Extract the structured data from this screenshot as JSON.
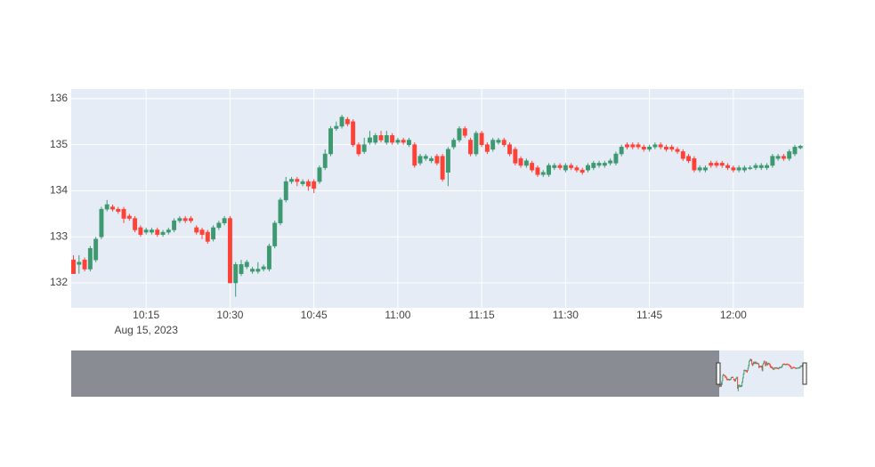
{
  "chart_data": {
    "type": "candlestick",
    "x": [
      "2023-08-15 10:02",
      "2023-08-15 10:03",
      "2023-08-15 10:04",
      "2023-08-15 10:05",
      "2023-08-15 10:06",
      "2023-08-15 10:07",
      "2023-08-15 10:08",
      "2023-08-15 10:09",
      "2023-08-15 10:10",
      "2023-08-15 10:11",
      "2023-08-15 10:12",
      "2023-08-15 10:13",
      "2023-08-15 10:14",
      "2023-08-15 10:15",
      "2023-08-15 10:16",
      "2023-08-15 10:17",
      "2023-08-15 10:18",
      "2023-08-15 10:19",
      "2023-08-15 10:20",
      "2023-08-15 10:21",
      "2023-08-15 10:22",
      "2023-08-15 10:23",
      "2023-08-15 10:24",
      "2023-08-15 10:25",
      "2023-08-15 10:26",
      "2023-08-15 10:27",
      "2023-08-15 10:28",
      "2023-08-15 10:29",
      "2023-08-15 10:30",
      "2023-08-15 10:31",
      "2023-08-15 10:32",
      "2023-08-15 10:33",
      "2023-08-15 10:34",
      "2023-08-15 10:35",
      "2023-08-15 10:36",
      "2023-08-15 10:37",
      "2023-08-15 10:38",
      "2023-08-15 10:39",
      "2023-08-15 10:40",
      "2023-08-15 10:41",
      "2023-08-15 10:42",
      "2023-08-15 10:43",
      "2023-08-15 10:44",
      "2023-08-15 10:45",
      "2023-08-15 10:46",
      "2023-08-15 10:47",
      "2023-08-15 10:48",
      "2023-08-15 10:49",
      "2023-08-15 10:50",
      "2023-08-15 10:51",
      "2023-08-15 10:52",
      "2023-08-15 10:53",
      "2023-08-15 10:54",
      "2023-08-15 10:55",
      "2023-08-15 10:56",
      "2023-08-15 10:57",
      "2023-08-15 10:58",
      "2023-08-15 10:59",
      "2023-08-15 11:00",
      "2023-08-15 11:01",
      "2023-08-15 11:02",
      "2023-08-15 11:03",
      "2023-08-15 11:04",
      "2023-08-15 11:05",
      "2023-08-15 11:06",
      "2023-08-15 11:07",
      "2023-08-15 11:08",
      "2023-08-15 11:09",
      "2023-08-15 11:10",
      "2023-08-15 11:11",
      "2023-08-15 11:12",
      "2023-08-15 11:13",
      "2023-08-15 11:14",
      "2023-08-15 11:15",
      "2023-08-15 11:16",
      "2023-08-15 11:17",
      "2023-08-15 11:18",
      "2023-08-15 11:19",
      "2023-08-15 11:20",
      "2023-08-15 11:21",
      "2023-08-15 11:22",
      "2023-08-15 11:23",
      "2023-08-15 11:24",
      "2023-08-15 11:25",
      "2023-08-15 11:26",
      "2023-08-15 11:27",
      "2023-08-15 11:28",
      "2023-08-15 11:29",
      "2023-08-15 11:30",
      "2023-08-15 11:31",
      "2023-08-15 11:32",
      "2023-08-15 11:33",
      "2023-08-15 11:34",
      "2023-08-15 11:35",
      "2023-08-15 11:36",
      "2023-08-15 11:37",
      "2023-08-15 11:38",
      "2023-08-15 11:39",
      "2023-08-15 11:40",
      "2023-08-15 11:41",
      "2023-08-15 11:42",
      "2023-08-15 11:43",
      "2023-08-15 11:44",
      "2023-08-15 11:45",
      "2023-08-15 11:46",
      "2023-08-15 11:47",
      "2023-08-15 11:48",
      "2023-08-15 11:49",
      "2023-08-15 11:50",
      "2023-08-15 11:51",
      "2023-08-15 11:52",
      "2023-08-15 11:53",
      "2023-08-15 11:54",
      "2023-08-15 11:55",
      "2023-08-15 11:56",
      "2023-08-15 11:57",
      "2023-08-15 11:58",
      "2023-08-15 11:59",
      "2023-08-15 12:00",
      "2023-08-15 12:01",
      "2023-08-15 12:02",
      "2023-08-15 12:03",
      "2023-08-15 12:04",
      "2023-08-15 12:05",
      "2023-08-15 12:06",
      "2023-08-15 12:07",
      "2023-08-15 12:08",
      "2023-08-15 12:09",
      "2023-08-15 12:10",
      "2023-08-15 12:11",
      "2023-08-15 12:12"
    ],
    "open": [
      132.5,
      132.4,
      132.5,
      132.3,
      132.5,
      133.0,
      133.6,
      133.65,
      133.6,
      133.6,
      133.45,
      133.4,
      133.2,
      133.1,
      133.1,
      133.15,
      133.05,
      133.1,
      133.15,
      133.35,
      133.4,
      133.4,
      133.2,
      133.15,
      133.1,
      132.95,
      133.2,
      133.3,
      133.4,
      132.0,
      132.2,
      132.35,
      132.25,
      132.25,
      132.3,
      132.3,
      132.8,
      133.3,
      133.8,
      134.2,
      134.25,
      134.15,
      134.2,
      134.2,
      134.2,
      134.5,
      134.8,
      135.35,
      135.4,
      135.55,
      135.5,
      135.0,
      134.85,
      135.05,
      135.05,
      135.2,
      135.05,
      135.2,
      135.05,
      135.1,
      135.0,
      135.0,
      134.6,
      134.7,
      134.65,
      134.75,
      134.75,
      134.4,
      134.95,
      135.1,
      135.35,
      135.1,
      134.8,
      135.25,
      135.0,
      134.9,
      135.05,
      135.1,
      135.0,
      134.9,
      134.7,
      134.55,
      134.6,
      134.5,
      134.35,
      134.35,
      134.5,
      134.55,
      134.45,
      134.55,
      134.5,
      134.45,
      134.45,
      134.5,
      134.55,
      134.55,
      134.6,
      134.6,
      134.8,
      135.0,
      135.0,
      135.0,
      134.95,
      134.9,
      134.95,
      135.0,
      134.95,
      134.95,
      134.9,
      134.85,
      134.75,
      134.7,
      134.45,
      134.45,
      134.6,
      134.6,
      134.6,
      134.55,
      134.5,
      134.45,
      134.45,
      134.48,
      134.5,
      134.5,
      134.5,
      134.55,
      134.7,
      134.75,
      134.7,
      134.8,
      134.93
    ],
    "high": [
      132.6,
      132.6,
      132.55,
      132.8,
      133.0,
      133.65,
      133.8,
      133.7,
      133.65,
      133.65,
      133.5,
      133.45,
      133.25,
      133.2,
      133.2,
      133.2,
      133.15,
      133.2,
      133.4,
      133.45,
      133.45,
      133.45,
      133.25,
      133.2,
      133.15,
      133.25,
      133.35,
      133.45,
      133.45,
      132.45,
      132.5,
      132.5,
      132.35,
      132.45,
      132.4,
      132.85,
      133.35,
      133.85,
      134.3,
      134.3,
      134.3,
      134.25,
      134.25,
      134.25,
      134.55,
      134.9,
      135.4,
      135.5,
      135.65,
      135.6,
      135.55,
      135.05,
      135.15,
      135.3,
      135.25,
      135.3,
      135.3,
      135.25,
      135.15,
      135.15,
      135.15,
      135.05,
      134.8,
      134.8,
      134.75,
      134.8,
      134.8,
      134.95,
      135.15,
      135.4,
      135.4,
      135.15,
      135.3,
      135.3,
      135.05,
      135.15,
      135.15,
      135.15,
      135.05,
      134.95,
      134.75,
      134.7,
      134.65,
      134.55,
      134.45,
      134.6,
      134.6,
      134.6,
      134.6,
      134.6,
      134.55,
      134.5,
      134.6,
      134.65,
      134.65,
      134.65,
      134.7,
      134.85,
      135.0,
      135.05,
      135.05,
      135.05,
      135.0,
      135.0,
      135.05,
      135.05,
      135.0,
      135.0,
      134.95,
      134.9,
      134.8,
      134.75,
      134.55,
      134.55,
      134.65,
      134.65,
      134.65,
      134.6,
      134.55,
      134.55,
      134.55,
      134.55,
      134.6,
      134.6,
      134.6,
      134.8,
      134.8,
      134.8,
      134.9,
      135.0,
      135.0
    ],
    "low": [
      132.2,
      132.2,
      132.25,
      132.25,
      132.45,
      132.95,
      133.55,
      133.55,
      133.5,
      133.3,
      133.35,
      133.1,
      133.0,
      133.05,
      133.05,
      133.0,
      133.0,
      133.05,
      133.1,
      133.3,
      133.3,
      133.3,
      133.05,
      132.95,
      132.85,
      132.9,
      133.15,
      133.25,
      132.0,
      131.7,
      132.15,
      132.3,
      132.2,
      132.2,
      132.25,
      132.25,
      132.75,
      133.25,
      133.75,
      134.15,
      134.1,
      134.1,
      134.0,
      133.95,
      134.15,
      134.45,
      134.75,
      135.3,
      135.35,
      135.4,
      134.95,
      134.75,
      134.8,
      135.0,
      135.0,
      135.05,
      135.0,
      135.0,
      135.0,
      135.0,
      134.95,
      134.5,
      134.55,
      134.65,
      134.6,
      134.55,
      134.2,
      134.1,
      134.9,
      135.05,
      135.15,
      134.75,
      134.75,
      134.95,
      134.8,
      134.85,
      135.0,
      134.95,
      134.75,
      134.55,
      134.5,
      134.5,
      134.4,
      134.3,
      134.3,
      134.3,
      134.45,
      134.45,
      134.4,
      134.45,
      134.4,
      134.35,
      134.4,
      134.45,
      134.5,
      134.5,
      134.55,
      134.55,
      134.75,
      134.9,
      134.9,
      134.9,
      134.85,
      134.85,
      134.9,
      134.9,
      134.85,
      134.85,
      134.8,
      134.65,
      134.6,
      134.4,
      134.4,
      134.4,
      134.5,
      134.5,
      134.5,
      134.45,
      134.4,
      134.4,
      134.4,
      134.45,
      134.45,
      134.45,
      134.45,
      134.5,
      134.65,
      134.65,
      134.65,
      134.75,
      134.9
    ],
    "close": [
      132.2,
      132.45,
      132.3,
      132.75,
      132.95,
      133.6,
      133.7,
      133.6,
      133.55,
      133.4,
      133.4,
      133.15,
      133.05,
      133.15,
      133.15,
      133.05,
      133.1,
      133.15,
      133.35,
      133.4,
      133.35,
      133.35,
      133.1,
      133.05,
      132.9,
      133.2,
      133.3,
      133.4,
      132.0,
      132.4,
      132.4,
      132.45,
      132.3,
      132.3,
      132.35,
      132.8,
      133.3,
      133.8,
      134.2,
      134.25,
      134.2,
      134.2,
      134.1,
      134.05,
      134.5,
      134.8,
      135.35,
      135.4,
      135.6,
      135.45,
      135.0,
      134.8,
      135.0,
      135.15,
      135.2,
      135.1,
      135.2,
      135.05,
      135.1,
      135.05,
      135.1,
      134.55,
      134.75,
      134.75,
      134.7,
      134.6,
      134.25,
      134.9,
      135.1,
      135.35,
      135.2,
      134.8,
      135.25,
      135.0,
      134.85,
      135.1,
      135.1,
      135.0,
      134.8,
      134.6,
      134.55,
      134.65,
      134.45,
      134.35,
      134.4,
      134.55,
      134.55,
      134.5,
      134.55,
      134.5,
      134.45,
      134.4,
      134.55,
      134.6,
      134.6,
      134.6,
      134.65,
      134.8,
      134.95,
      134.95,
      134.95,
      134.95,
      134.9,
      134.95,
      135.0,
      134.95,
      134.9,
      134.9,
      134.85,
      134.7,
      134.65,
      134.45,
      134.5,
      134.5,
      134.55,
      134.55,
      134.55,
      134.5,
      134.45,
      134.5,
      134.5,
      134.5,
      134.55,
      134.55,
      134.55,
      134.75,
      134.75,
      134.7,
      134.85,
      134.95,
      134.97
    ],
    "increasing_color": "#3D9970",
    "decreasing_color": "#FF4136",
    "xlim": [
      "2023-08-15 10:01:36",
      "2023-08-15 12:12:36"
    ],
    "xticks": [
      {
        "value": "2023-08-15 10:15",
        "label": "10:15"
      },
      {
        "value": "2023-08-15 10:30",
        "label": "10:30"
      },
      {
        "value": "2023-08-15 10:45",
        "label": "10:45"
      },
      {
        "value": "2023-08-15 11:00",
        "label": "11:00"
      },
      {
        "value": "2023-08-15 11:15",
        "label": "11:15"
      },
      {
        "value": "2023-08-15 11:30",
        "label": "11:30"
      },
      {
        "value": "2023-08-15 11:45",
        "label": "11:45"
      },
      {
        "value": "2023-08-15 12:00",
        "label": "12:00"
      }
    ],
    "x_date_label": "Aug 15, 2023",
    "ylim": [
      131.46,
      136.21
    ],
    "yticks": [
      132,
      133,
      134,
      135,
      136
    ],
    "grid": true,
    "rangeslider": true
  }
}
